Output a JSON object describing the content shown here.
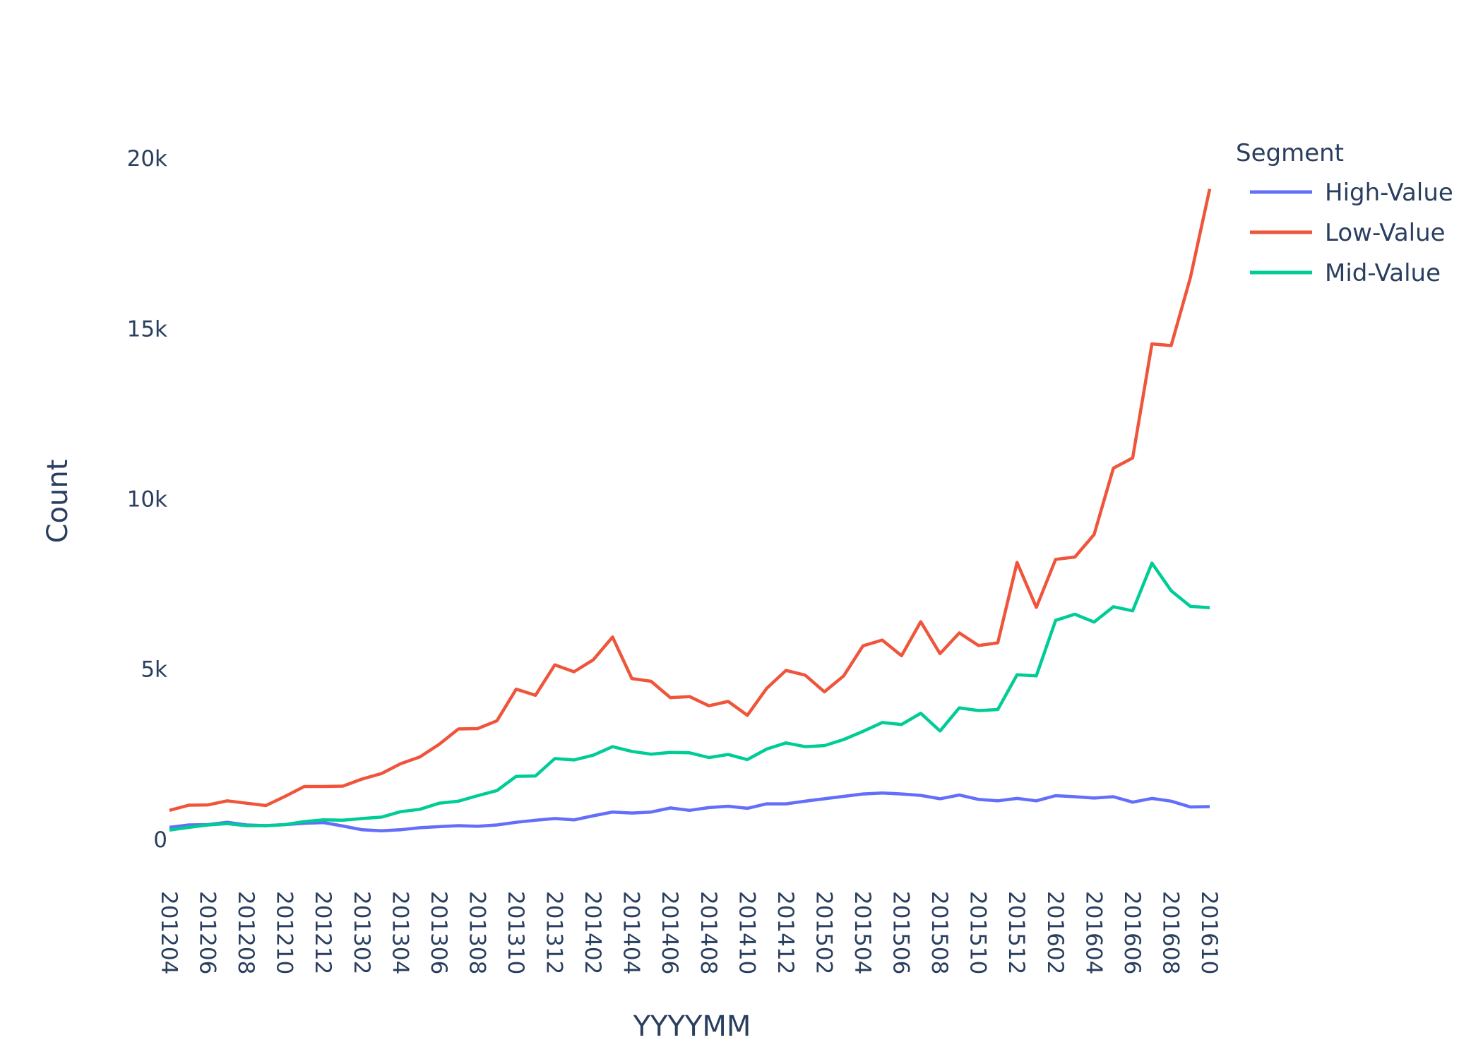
{
  "chart_data": {
    "type": "line",
    "xlabel": "YYYYMM",
    "ylabel": "Count",
    "ylim": [
      -1000,
      21000
    ],
    "y_ticks": [
      0,
      5000,
      10000,
      15000,
      20000
    ],
    "y_tick_labels": [
      "0",
      "5k",
      "10k",
      "15k",
      "20k"
    ],
    "grid": false,
    "legend": {
      "title": "Segment",
      "position": "top-right"
    },
    "x": [
      "201204",
      "201205",
      "201206",
      "201207",
      "201208",
      "201209",
      "201210",
      "201211",
      "201212",
      "201301",
      "201302",
      "201303",
      "201304",
      "201305",
      "201306",
      "201307",
      "201308",
      "201309",
      "201310",
      "201311",
      "201312",
      "201401",
      "201402",
      "201403",
      "201404",
      "201405",
      "201406",
      "201407",
      "201408",
      "201409",
      "201410",
      "201411",
      "201412",
      "201501",
      "201502",
      "201503",
      "201504",
      "201505",
      "201506",
      "201507",
      "201508",
      "201509",
      "201510",
      "201511",
      "201512",
      "201601",
      "201602",
      "201603",
      "201604",
      "201605",
      "201606",
      "201607",
      "201608",
      "201609",
      "201610"
    ],
    "x_tick_labels": [
      "201204",
      "201206",
      "201208",
      "201210",
      "201212",
      "201302",
      "201304",
      "201306",
      "201308",
      "201310",
      "201312",
      "201402",
      "201404",
      "201406",
      "201408",
      "201410",
      "201412",
      "201502",
      "201504",
      "201506",
      "201508",
      "201510",
      "201512",
      "201602",
      "201604",
      "201606",
      "201608",
      "201610"
    ],
    "series": [
      {
        "name": "High-Value",
        "color": "#636efa",
        "values": [
          350,
          420,
          430,
          500,
          420,
          400,
          430,
          470,
          490,
          390,
          280,
          250,
          280,
          340,
          370,
          400,
          380,
          420,
          500,
          560,
          610,
          570,
          690,
          800,
          770,
          800,
          920,
          850,
          930,
          970,
          910,
          1040,
          1040,
          1120,
          1190,
          1260,
          1330,
          1360,
          1330,
          1290,
          1190,
          1300,
          1170,
          1130,
          1200,
          1130,
          1280,
          1250,
          1210,
          1250,
          1090,
          1200,
          1120,
          950,
          960
        ]
      },
      {
        "name": "Low-Value",
        "color": "#ef553b",
        "values": [
          850,
          1000,
          1010,
          1130,
          1060,
          990,
          1260,
          1550,
          1550,
          1560,
          1770,
          1930,
          2220,
          2420,
          2790,
          3240,
          3250,
          3480,
          4410,
          4230,
          5120,
          4920,
          5270,
          5940,
          4720,
          4640,
          4160,
          4190,
          3920,
          4050,
          3640,
          4430,
          4960,
          4820,
          4330,
          4800,
          5680,
          5850,
          5390,
          6390,
          5450,
          6060,
          5690,
          5770,
          8130,
          6810,
          8220,
          8290,
          8950,
          10900,
          11200,
          14550,
          14500,
          16500,
          19100
        ]
      },
      {
        "name": "Mid-Value",
        "color": "#00cc96",
        "values": [
          270,
          350,
          420,
          460,
          400,
          400,
          430,
          520,
          570,
          560,
          610,
          650,
          810,
          880,
          1060,
          1120,
          1280,
          1430,
          1850,
          1860,
          2370,
          2330,
          2470,
          2720,
          2580,
          2500,
          2550,
          2540,
          2400,
          2490,
          2340,
          2650,
          2830,
          2720,
          2750,
          2930,
          3170,
          3430,
          3370,
          3700,
          3180,
          3860,
          3780,
          3810,
          4830,
          4800,
          6430,
          6610,
          6380,
          6830,
          6710,
          8110,
          7300,
          6840,
          6800
        ]
      }
    ]
  }
}
